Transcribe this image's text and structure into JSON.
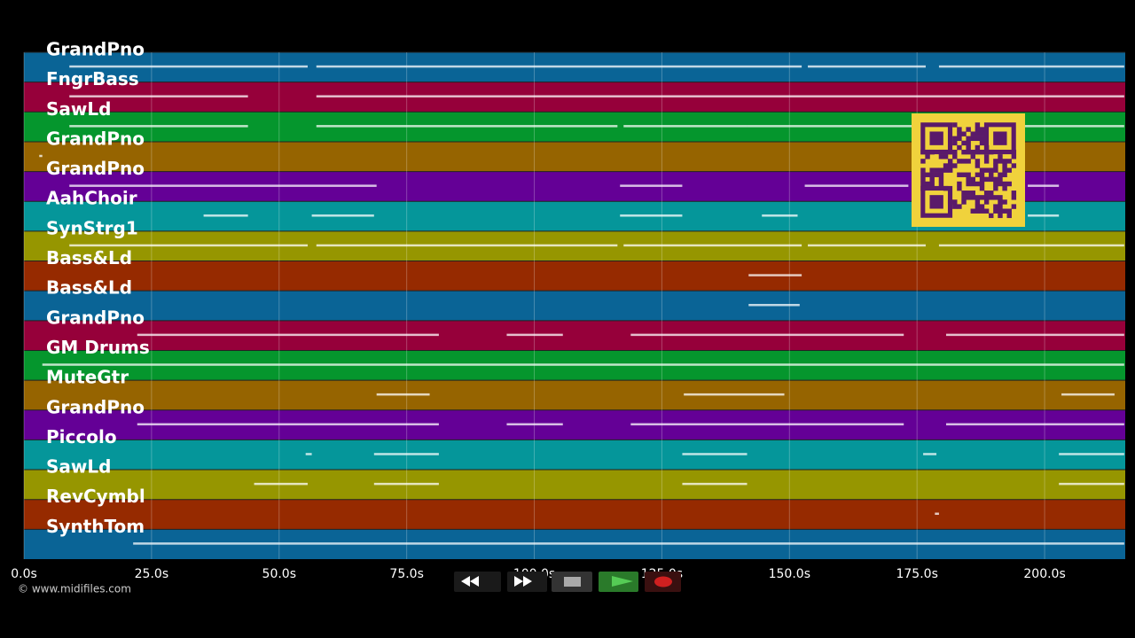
{
  "chart_data": {
    "type": "piano-roll",
    "xlim": [
      0,
      215.8
    ],
    "xticks": [
      {
        "value": 0,
        "label": "0.0s"
      },
      {
        "value": 25,
        "label": "25.0s"
      },
      {
        "value": 50,
        "label": "50.0s"
      },
      {
        "value": 75,
        "label": "75.0s"
      },
      {
        "value": 100,
        "label": "100.0s"
      },
      {
        "value": 125,
        "label": "125.0s"
      },
      {
        "value": 150,
        "label": "150.0s"
      },
      {
        "value": 175,
        "label": "175.0s"
      },
      {
        "value": 200,
        "label": "200.0s"
      }
    ],
    "grid": true,
    "tracks": [
      {
        "name": "GrandPno",
        "color": "#0a6496",
        "notes": [
          [
            8.9,
            55.6
          ],
          [
            57.3,
            152.4
          ],
          [
            153.6,
            176.7
          ],
          [
            179.3,
            215.6
          ]
        ]
      },
      {
        "name": "FngrBass",
        "color": "#96003a",
        "notes": [
          [
            8.9,
            43.9
          ],
          [
            57.3,
            215.6
          ]
        ]
      },
      {
        "name": "SawLd",
        "color": "#05962d",
        "notes": [
          [
            8.9,
            43.9
          ],
          [
            57.3,
            116.3
          ],
          [
            117.5,
            141.7
          ],
          [
            141.7,
            174
          ],
          [
            195.8,
            215.6
          ]
        ]
      },
      {
        "name": "GrandPno",
        "color": "#966400",
        "notes": [
          [
            3.0,
            3.6
          ]
        ]
      },
      {
        "name": "GrandPno",
        "color": "#640096",
        "notes": [
          [
            8.9,
            69.1
          ],
          [
            116.8,
            129
          ],
          [
            153,
            173.3
          ],
          [
            196.7,
            202.8
          ]
        ]
      },
      {
        "name": "AahChoir",
        "color": "#05969a",
        "notes": [
          [
            35.2,
            43.9
          ],
          [
            56.4,
            68.6
          ],
          [
            116.8,
            129
          ],
          [
            144.6,
            151.6
          ],
          [
            196.7,
            202.8
          ]
        ]
      },
      {
        "name": "SynStrg1",
        "color": "#969600",
        "notes": [
          [
            8.9,
            55.6
          ],
          [
            57.3,
            116.3
          ],
          [
            117.5,
            152.4
          ],
          [
            153.6,
            176.7
          ],
          [
            179.3,
            215.6
          ]
        ]
      },
      {
        "name": "Bass&Ld",
        "color": "#962a00",
        "notes": [
          [
            142,
            152.4
          ]
        ]
      },
      {
        "name": "Bass&Ld",
        "color": "#0a6496",
        "notes": [
          [
            142,
            152
          ]
        ]
      },
      {
        "name": "GrandPno",
        "color": "#96003a",
        "notes": [
          [
            22.2,
            81.3
          ],
          [
            94.6,
            105.6
          ],
          [
            118.9,
            172.4
          ],
          [
            180.7,
            215.6
          ]
        ]
      },
      {
        "name": "GM Drums",
        "color": "#05962d",
        "notes": [
          [
            3.6,
            215.6
          ]
        ]
      },
      {
        "name": "MuteGtr",
        "color": "#966400",
        "notes": [
          [
            69.1,
            79.5
          ],
          [
            129.3,
            149
          ],
          [
            203.3,
            213.7
          ]
        ]
      },
      {
        "name": "GrandPno",
        "color": "#640096",
        "notes": [
          [
            22.2,
            81.3
          ],
          [
            94.6,
            105.6
          ],
          [
            118.9,
            172.4
          ],
          [
            180.7,
            215.6
          ]
        ]
      },
      {
        "name": "Piccolo",
        "color": "#05969a",
        "notes": [
          [
            55.2,
            56.4
          ],
          [
            68.6,
            81.3
          ],
          [
            129,
            141.7
          ],
          [
            176.2,
            178.8
          ],
          [
            202.8,
            215.6
          ]
        ]
      },
      {
        "name": "SawLd",
        "color": "#969600",
        "notes": [
          [
            45.1,
            55.6
          ],
          [
            68.6,
            81.3
          ],
          [
            129,
            141.7
          ],
          [
            202.8,
            215.6
          ]
        ]
      },
      {
        "name": "RevCymbl",
        "color": "#962a00",
        "notes": [
          [
            178.5,
            179.3
          ]
        ]
      },
      {
        "name": "SynthTom",
        "color": "#0a6496",
        "notes": [
          [
            21.4,
            215.6
          ]
        ]
      }
    ]
  },
  "footer": {
    "copyright": "© www.midifiles.com"
  }
}
